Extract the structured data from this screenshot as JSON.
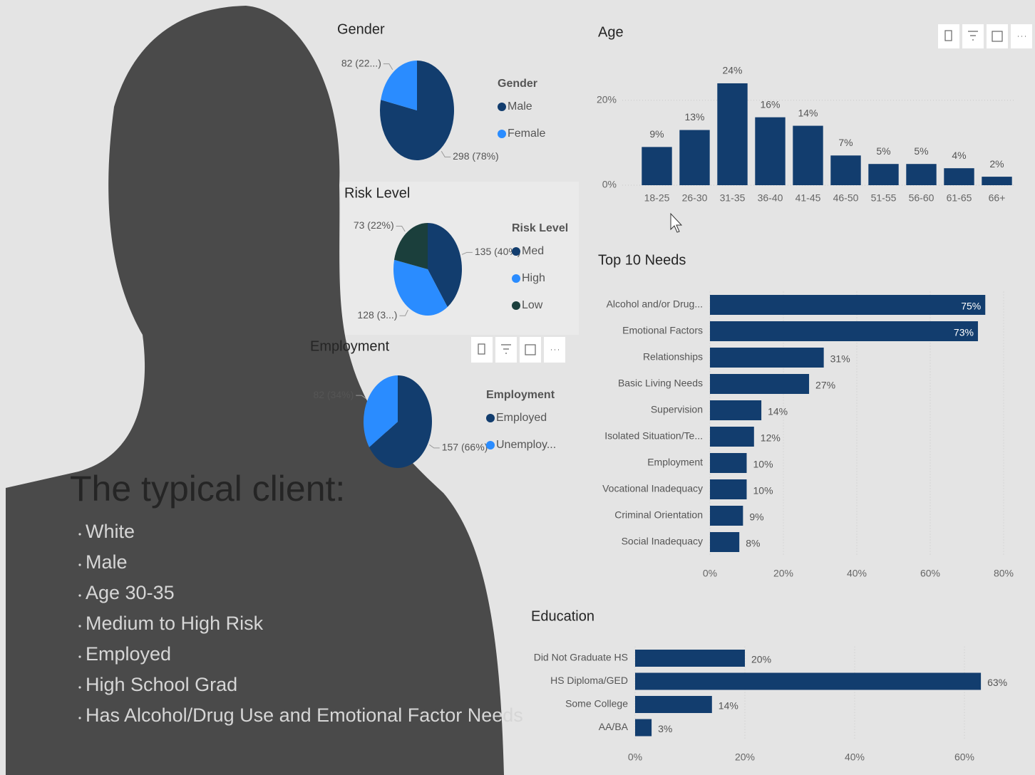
{
  "chart_data": [
    {
      "type": "pie",
      "title": "Gender",
      "legend_title": "Gender",
      "categories": [
        "Male",
        "Female"
      ],
      "values": [
        298,
        82
      ],
      "value_labels": [
        "298 (78%)",
        "82 (22...)"
      ],
      "colors": [
        "#123d6e",
        "#2a8cff"
      ]
    },
    {
      "type": "pie",
      "title": "Risk Level",
      "legend_title": "Risk Level",
      "categories": [
        "Med",
        "High",
        "Low"
      ],
      "values": [
        135,
        128,
        73
      ],
      "value_labels": [
        "135 (40%)",
        "128 (3...)",
        "73 (22%)"
      ],
      "colors": [
        "#123d6e",
        "#2a8cff",
        "#1b3f3c"
      ]
    },
    {
      "type": "pie",
      "title": "Employment",
      "legend_title": "Employment",
      "categories": [
        "Employed",
        "Unemploy..."
      ],
      "values": [
        157,
        82
      ],
      "value_labels": [
        "157 (66%)",
        "82 (34%)"
      ],
      "colors": [
        "#123d6e",
        "#2a8cff"
      ]
    },
    {
      "type": "bar",
      "title": "Age",
      "categories": [
        "18-25",
        "26-30",
        "31-35",
        "36-40",
        "41-45",
        "46-50",
        "51-55",
        "56-60",
        "61-65",
        "66+"
      ],
      "values": [
        9,
        13,
        24,
        16,
        14,
        7,
        5,
        5,
        4,
        2
      ],
      "value_labels": [
        "9%",
        "13%",
        "24%",
        "16%",
        "14%",
        "7%",
        "5%",
        "5%",
        "4%",
        "2%"
      ],
      "color": "#123d6e",
      "ylim": [
        0,
        25
      ],
      "yticks": [
        {
          "value": 0,
          "label": "0%"
        },
        {
          "value": 20,
          "label": "20%"
        }
      ],
      "grid": true
    },
    {
      "type": "bar",
      "horizontal": true,
      "title": "Top 10 Needs",
      "categories": [
        "Alcohol and/or Drug...",
        "Emotional Factors",
        "Relationships",
        "Basic Living Needs",
        "Supervision",
        "Isolated Situation/Te...",
        "Employment",
        "Vocational Inadequacy",
        "Criminal Orientation",
        "Social Inadequacy"
      ],
      "values": [
        75,
        73,
        31,
        27,
        14,
        12,
        10,
        10,
        9,
        8
      ],
      "value_labels": [
        "75%",
        "73%",
        "31%",
        "27%",
        "14%",
        "12%",
        "10%",
        "10%",
        "9%",
        "8%"
      ],
      "color": "#123d6e",
      "xlim": [
        0,
        80
      ],
      "xticks": [
        {
          "value": 0,
          "label": "0%"
        },
        {
          "value": 20,
          "label": "20%"
        },
        {
          "value": 40,
          "label": "40%"
        },
        {
          "value": 60,
          "label": "60%"
        },
        {
          "value": 80,
          "label": "80%"
        }
      ],
      "grid": true
    },
    {
      "type": "bar",
      "horizontal": true,
      "title": "Education",
      "categories": [
        "Did Not Graduate HS",
        "HS Diploma/GED",
        "Some College",
        "AA/BA"
      ],
      "values": [
        20,
        63,
        14,
        3
      ],
      "value_labels": [
        "20%",
        "63%",
        "14%",
        "3%"
      ],
      "color": "#123d6e",
      "xlim": [
        0,
        70
      ],
      "xticks": [
        {
          "value": 0,
          "label": "0%"
        },
        {
          "value": 20,
          "label": "20%"
        },
        {
          "value": 40,
          "label": "40%"
        },
        {
          "value": 60,
          "label": "60%"
        }
      ],
      "grid": true
    }
  ],
  "panel": {
    "title": "The typical client:",
    "items": [
      "White",
      "Male",
      "Age 30-35",
      "Medium to High Risk",
      "Employed",
      "High School Grad",
      "Has Alcohol/Drug Use and Emotional Factor Needs"
    ]
  }
}
